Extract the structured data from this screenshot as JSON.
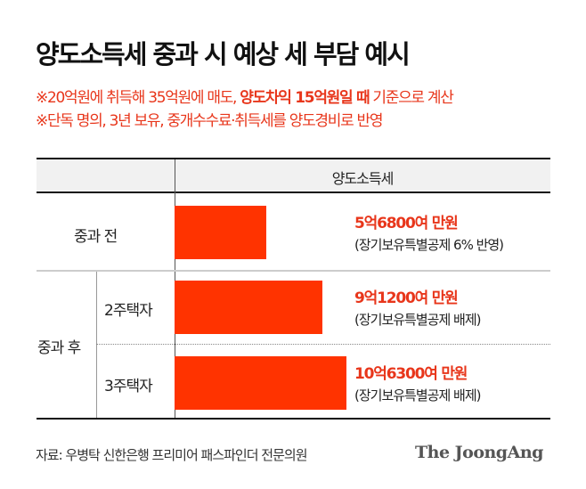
{
  "title": "양도소득세 중과 시 예상 세 부담 예시",
  "notes": {
    "line1_pre": "※20억원에 취득해 35억원에 매도, ",
    "line1_bold": "양도차익 15억원일 때",
    "line1_post": " 기준으로 계산",
    "line2": "※단독 명의, 3년 보유, 중개수수료·취득세를 양도경비로 반영"
  },
  "colors": {
    "accent": "#ff3300",
    "text_accent": "#e8361b"
  },
  "chart_data": {
    "type": "bar",
    "orientation": "horizontal",
    "column_header": "양도소득세",
    "unit": "억원",
    "groups": [
      {
        "label": "중과 전"
      },
      {
        "label": "중과 후"
      }
    ],
    "categories": [
      "중과 전",
      "2주택자",
      "3주택자"
    ],
    "values": [
      5.68,
      9.12,
      10.63
    ],
    "value_labels": [
      "5억6800여 만원",
      "9억1200여 만원",
      "10억6300여 만원"
    ],
    "notes": [
      "(장기보유특별공제 6% 반영)",
      "(장기보유특별공제 배제)",
      "(장기보유특별공제 배제)"
    ]
  },
  "source": "자료: 우병탁 신한은행 프리미어 패스파인더 전문의원",
  "logo": "The JoongAng"
}
